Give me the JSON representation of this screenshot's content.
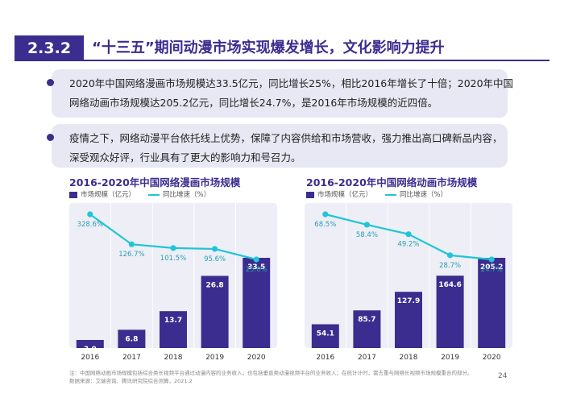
{
  "header": {
    "section_number": "2.3.2",
    "title": "“十三五”期间动漫市场实现爆发增长，文化影响力提升"
  },
  "bullets": [
    {
      "line1": "2020年中国网络漫画市场规模达33.5亿元，同比增长25%，相比2016年增长了十倍；2020年中国",
      "line2": "网络动画市场规模达205.2亿元，同比增长24.7%，是2016年市场规模的近四倍。"
    },
    {
      "line1": "疫情之下，网络动漫平台依托线上优势，保障了内容供给和市场营收，强力推出高口碑新品内容，",
      "line2": "深受观众好评，行业具有了更大的影响力和号召力。"
    }
  ],
  "chart_data": [
    {
      "type": "bar",
      "title": "2016-2020年中国网络漫画市场规模",
      "categories": [
        "2016",
        "2017",
        "2018",
        "2019",
        "2020"
      ],
      "series": [
        {
          "name": "市场规模（亿元）",
          "type": "bar",
          "values": [
            3.0,
            6.8,
            13.7,
            26.8,
            33.5
          ],
          "labels": [
            "3.0",
            "6.8",
            "13.7",
            "26.8",
            "33.5"
          ]
        },
        {
          "name": "同比增速（%）",
          "type": "line",
          "values": [
            328.6,
            126.7,
            101.5,
            95.6,
            25.0
          ],
          "labels": [
            "328.6%",
            "126.7%",
            "101.5%",
            "95.6%",
            "25.0%"
          ]
        }
      ],
      "legend_position": "top-left",
      "colors": {
        "bar": "#3b2d8f",
        "line": "#20c5d6",
        "grid": "#ffffff"
      }
    },
    {
      "type": "bar",
      "title": "2016-2020年中国网络动画市场规模",
      "categories": [
        "2016",
        "2017",
        "2018",
        "2019",
        "2020"
      ],
      "series": [
        {
          "name": "市场规模（亿元）",
          "type": "bar",
          "values": [
            54.1,
            85.7,
            127.9,
            164.6,
            205.2
          ],
          "labels": [
            "54.1",
            "85.7",
            "127.9",
            "164.6",
            "205.2"
          ]
        },
        {
          "name": "同比增速（%）",
          "type": "line",
          "values": [
            68.5,
            58.4,
            49.2,
            28.7,
            24.7
          ],
          "labels": [
            "68.5%",
            "58.4%",
            "49.2%",
            "28.7%",
            "24.7%"
          ]
        }
      ],
      "legend_position": "top-left",
      "colors": {
        "bar": "#3b2d8f",
        "line": "#20c5d6",
        "grid": "#ffffff"
      }
    }
  ],
  "footnote": {
    "line1": "注：中国网络动画市场规模包括综合类长视频平台通过动漫内容的业务收入，也包括垂直类动漫视频平台的业务收入；在统计计时，需去重与网络长视频市场规模重合的部分。",
    "line2": "数据来源：艾瑞咨询、腾讯研究院综合测算，2021.2"
  },
  "page_number": "24"
}
